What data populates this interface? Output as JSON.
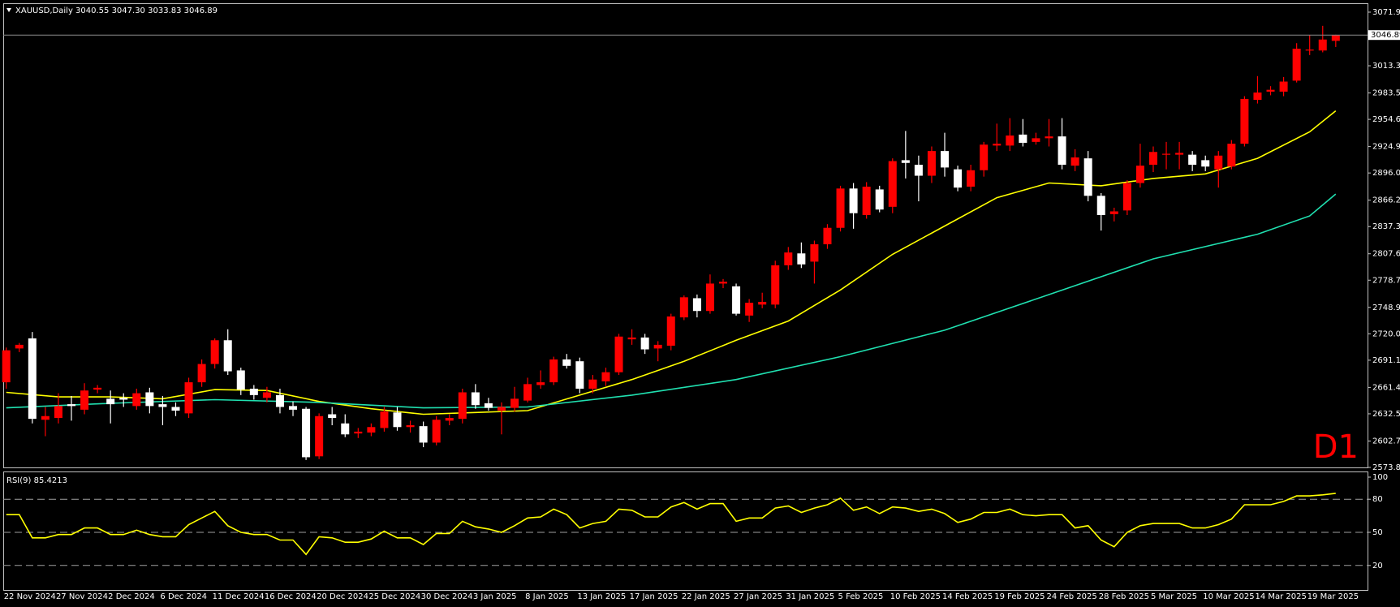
{
  "chart_data": [
    {
      "type": "candlestick",
      "title": "XAUUSD,Daily  3040.55 3047.30 3033.83 3046.89",
      "timeframe_label": "D1",
      "up_color": "#ff0000",
      "down_color": "#ffffff",
      "categories": [
        "22 Nov 2024",
        null,
        null,
        null,
        "27 Nov 2024",
        null,
        null,
        null,
        "2 Dec 2024",
        null,
        null,
        null,
        "6 Dec 2024",
        null,
        null,
        null,
        "11 Dec 2024",
        null,
        null,
        null,
        "16 Dec 2024",
        null,
        null,
        null,
        "20 Dec 2024",
        null,
        null,
        null,
        "25 Dec 2024",
        null,
        null,
        null,
        "30 Dec 2024",
        null,
        null,
        null,
        "3 Jan 2025",
        null,
        null,
        null,
        "8 Jan 2025",
        null,
        null,
        null,
        "13 Jan 2025",
        null,
        null,
        null,
        "17 Jan 2025",
        null,
        null,
        null,
        "22 Jan 2025",
        null,
        null,
        null,
        "27 Jan 2025",
        null,
        null,
        null,
        "31 Jan 2025",
        null,
        null,
        null,
        "5 Feb 2025",
        null,
        null,
        null,
        "10 Feb 2025",
        null,
        null,
        null,
        "14 Feb 2025",
        null,
        null,
        null,
        "19 Feb 2025",
        null,
        null,
        null,
        "24 Feb 2025",
        null,
        null,
        null,
        "28 Feb 2025",
        null,
        null,
        null,
        "5 Mar 2025",
        null,
        null,
        null,
        "10 Mar 2025",
        null,
        null,
        null,
        "14 Mar 2025",
        null,
        null,
        null,
        "19 Mar 2025",
        null,
        null
      ],
      "open": [
        2667,
        2704,
        2715,
        2626,
        2628,
        2643,
        2637,
        2659,
        2649,
        2650,
        2641,
        2656,
        2643,
        2640,
        2633,
        2667,
        2687,
        2713,
        2680,
        2660,
        2650,
        2653,
        2641,
        2638,
        2586,
        2632,
        2622,
        2611,
        2612,
        2617,
        2634,
        2618,
        2619,
        2601,
        2625,
        2627,
        2656,
        2644,
        2636,
        2639,
        2647,
        2664,
        2667,
        2692,
        2690,
        2660,
        2668,
        2678,
        2714,
        2716,
        2704,
        2707,
        2738,
        2759,
        2745,
        2775,
        2772,
        2740,
        2752,
        2752,
        2795,
        2808,
        2799,
        2818,
        2836,
        2879,
        2850,
        2878,
        2859,
        2910,
        2905,
        2893,
        2920,
        2900,
        2881,
        2899,
        2926,
        2926,
        2938,
        2930,
        2934,
        2936,
        2904,
        2912,
        2871,
        2851,
        2855,
        2885,
        2905,
        2916,
        2916,
        2916,
        2910,
        2900,
        2903,
        2928,
        2976,
        2985,
        2985,
        2997,
        3030,
        3030,
        3040.55
      ],
      "high": [
        2705,
        2710,
        2722,
        2640,
        2655,
        2652,
        2666,
        2664,
        2658,
        2655,
        2660,
        2661,
        2652,
        2645,
        2672,
        2692,
        2715,
        2725,
        2683,
        2664,
        2662,
        2660,
        2646,
        2640,
        2633,
        2640,
        2632,
        2617,
        2622,
        2640,
        2640,
        2625,
        2624,
        2630,
        2632,
        2660,
        2665,
        2650,
        2645,
        2662,
        2672,
        2680,
        2695,
        2698,
        2694,
        2675,
        2683,
        2720,
        2725,
        2720,
        2712,
        2742,
        2762,
        2763,
        2785,
        2780,
        2775,
        2758,
        2765,
        2800,
        2815,
        2820,
        2822,
        2840,
        2882,
        2885,
        2886,
        2882,
        2912,
        2942,
        2915,
        2925,
        2940,
        2904,
        2905,
        2930,
        2950,
        2956,
        2955,
        2940,
        2955,
        2956,
        2922,
        2920,
        2874,
        2858,
        2888,
        2928,
        2925,
        2930,
        2930,
        2920,
        2915,
        2920,
        2932,
        2980,
        3002,
        2991,
        3001,
        3038,
        3047,
        3057,
        3047.3
      ],
      "low": [
        2660,
        2700,
        2622,
        2608,
        2622,
        2625,
        2632,
        2655,
        2622,
        2640,
        2637,
        2633,
        2620,
        2630,
        2628,
        2662,
        2682,
        2675,
        2653,
        2648,
        2645,
        2633,
        2630,
        2582,
        2583,
        2620,
        2607,
        2606,
        2608,
        2613,
        2614,
        2612,
        2596,
        2598,
        2620,
        2622,
        2638,
        2636,
        2610,
        2635,
        2645,
        2660,
        2664,
        2682,
        2655,
        2655,
        2663,
        2675,
        2708,
        2698,
        2690,
        2702,
        2735,
        2738,
        2742,
        2770,
        2740,
        2733,
        2748,
        2748,
        2790,
        2792,
        2775,
        2813,
        2832,
        2835,
        2846,
        2853,
        2852,
        2890,
        2865,
        2885,
        2892,
        2876,
        2876,
        2892,
        2920,
        2920,
        2925,
        2927,
        2925,
        2900,
        2898,
        2865,
        2833,
        2843,
        2850,
        2880,
        2897,
        2900,
        2900,
        2898,
        2898,
        2880,
        2900,
        2925,
        2972,
        2981,
        2980,
        2995,
        3025,
        3028,
        3033.83
      ],
      "close": [
        2702,
        2708,
        2627,
        2630,
        2641,
        2641,
        2658,
        2661,
        2643,
        2648,
        2655,
        2641,
        2640,
        2636,
        2667,
        2687,
        2713,
        2679,
        2659,
        2653,
        2656,
        2640,
        2637,
        2585,
        2630,
        2628,
        2610,
        2613,
        2618,
        2635,
        2618,
        2620,
        2601,
        2626,
        2628,
        2656,
        2642,
        2639,
        2640,
        2649,
        2665,
        2667,
        2692,
        2685,
        2660,
        2670,
        2678,
        2717,
        2716,
        2703,
        2708,
        2739,
        2760,
        2745,
        2775,
        2777,
        2742,
        2754,
        2755,
        2795,
        2809,
        2796,
        2818,
        2836,
        2879,
        2852,
        2881,
        2856,
        2909,
        2907,
        2893,
        2920,
        2902,
        2880,
        2899,
        2927,
        2928,
        2937,
        2929,
        2934,
        2936,
        2905,
        2913,
        2871,
        2850,
        2854,
        2885,
        2904,
        2919,
        2917,
        2918,
        2905,
        2903,
        2915,
        2928,
        2977,
        2984,
        2987,
        2996,
        3032,
        3031,
        3042,
        3046.89
      ],
      "lines": [
        {
          "color": "#ffff00",
          "x": [
            0,
            4,
            8,
            12,
            16,
            20,
            24,
            28,
            32,
            36,
            40,
            44,
            48,
            52,
            56,
            60,
            64,
            68,
            72,
            76,
            80,
            84,
            88,
            92,
            96,
            100,
            102
          ],
          "values": [
            2656,
            2651,
            2651,
            2649,
            2659,
            2658,
            2646,
            2638,
            2632,
            2634,
            2636,
            2653,
            2670,
            2690,
            2713,
            2734,
            2768,
            2807,
            2838,
            2869,
            2885,
            2882,
            2890,
            2895,
            2912,
            2941,
            2964
          ]
        },
        {
          "color": "#20e0b0",
          "x": [
            0,
            8,
            16,
            24,
            32,
            40,
            48,
            56,
            64,
            72,
            80,
            88,
            96,
            100,
            102
          ],
          "values": [
            2639,
            2644,
            2648,
            2645,
            2639,
            2640,
            2653,
            2670,
            2695,
            2724,
            2763,
            2802,
            2829,
            2849,
            2873
          ]
        }
      ],
      "last_price": 3046.89,
      "ylim": [
        2573.85,
        3081.7
      ],
      "yticks": [
        3071.95,
        {
          "value": 3013.3,
          "label": "3013.30"
        },
        2983.55,
        2954.65,
        {
          "value": 2924.9,
          "label": "2924.90"
        },
        {
          "value": 2896,
          "label": "2896.00"
        },
        2866.25,
        2837.35,
        {
          "value": 2807.6,
          "label": "2807.60"
        },
        {
          "value": 2778.7,
          "label": "2778.70"
        },
        2748.95,
        2720.05,
        2691.15,
        {
          "value": 2661.4,
          "label": "2661.40"
        },
        {
          "value": 2632.5,
          "label": "2632.50"
        },
        2602.75,
        2573.85
      ]
    },
    {
      "type": "line",
      "title": "RSI(9) 85.4213",
      "color": "#ffff00",
      "values": [
        66,
        66,
        45,
        45,
        48,
        48,
        54,
        54,
        48,
        48,
        52,
        48,
        46,
        46,
        57,
        63,
        69,
        56,
        50,
        48,
        48,
        43,
        43,
        30,
        46,
        45,
        41,
        41,
        44,
        51,
        45,
        45,
        39,
        49,
        49,
        60,
        55,
        53,
        50,
        56,
        63,
        64,
        71,
        66,
        54,
        58,
        60,
        71,
        70,
        64,
        64,
        73,
        77,
        71,
        76,
        76,
        60,
        63,
        63,
        72,
        74,
        68,
        72,
        75,
        81,
        70,
        73,
        67,
        73,
        72,
        69,
        71,
        67,
        59,
        62,
        68,
        68,
        71,
        66,
        65,
        66,
        66,
        54,
        56,
        43,
        37,
        50,
        56,
        58,
        58,
        58,
        54,
        54,
        57,
        62,
        75,
        75,
        75,
        78,
        83,
        83,
        84,
        85.4
      ],
      "ylim": [
        0,
        100
      ],
      "yticks": [
        20,
        50,
        80,
        100
      ]
    }
  ]
}
